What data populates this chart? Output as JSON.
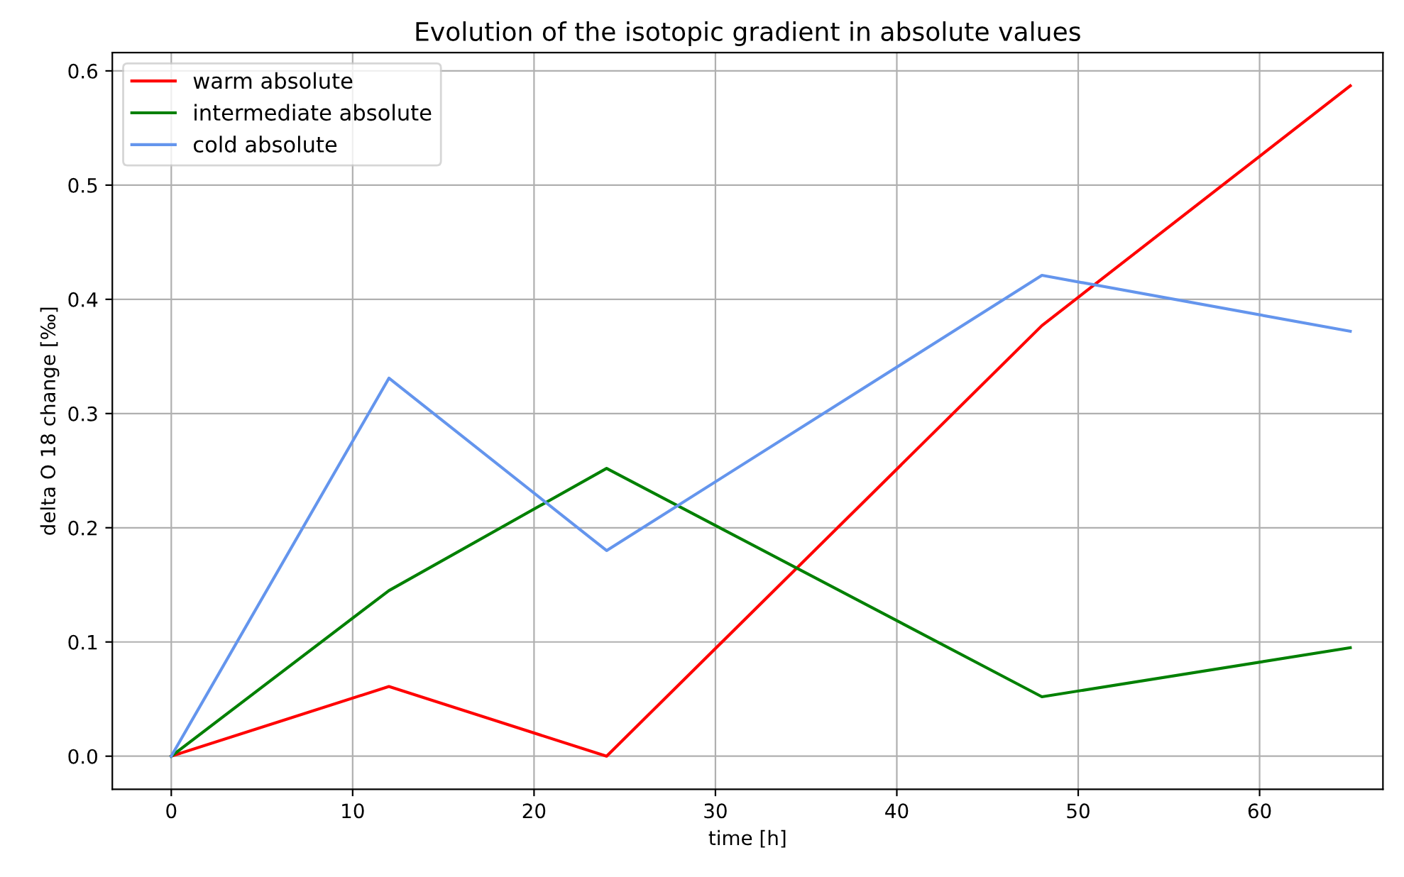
{
  "chart_data": {
    "type": "line",
    "title": "Evolution of the isotopic gradient in absolute values",
    "xlabel": "time [h]",
    "ylabel": "delta O 18 change [‰]",
    "x": [
      0,
      12,
      24,
      48,
      65
    ],
    "series": [
      {
        "name": "warm absolute",
        "color": "#ff0000",
        "values": [
          0,
          0.061,
          0,
          0.377,
          0.587
        ]
      },
      {
        "name": "intermediate absolute",
        "color": "#008000",
        "values": [
          0,
          0.145,
          0.252,
          0.052,
          0.095
        ]
      },
      {
        "name": "cold absolute",
        "color": "#6495ed",
        "values": [
          0,
          0.331,
          0.18,
          0.421,
          0.372
        ]
      }
    ],
    "xlim": [
      -3.25,
      66.8
    ],
    "ylim": [
      -0.029,
      0.616
    ],
    "xticks": [
      0,
      10,
      20,
      30,
      40,
      50,
      60
    ],
    "yticks": [
      {
        "value": 0,
        "label": "0.0"
      },
      0.1,
      0.2,
      0.3,
      0.4,
      0.5,
      0.6
    ],
    "grid": true,
    "legend": "top left",
    "marker": "none",
    "line_style": "solid"
  }
}
